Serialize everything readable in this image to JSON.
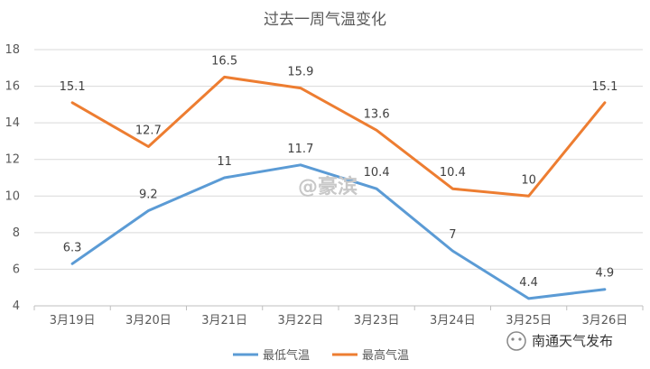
{
  "chart_data": {
    "type": "line",
    "title": "过去一周气温变化",
    "categories": [
      "3月19日",
      "3月20日",
      "3月21日",
      "3月22日",
      "3月23日",
      "3月24日",
      "3月25日",
      "3月26日"
    ],
    "series": [
      {
        "name": "最低气温",
        "color": "#5b9bd5",
        "values": [
          6.3,
          9.2,
          11,
          11.7,
          10.4,
          7,
          4.4,
          4.9
        ]
      },
      {
        "name": "最高气温",
        "color": "#ed7d31",
        "values": [
          15.1,
          12.7,
          16.5,
          15.9,
          13.6,
          10.4,
          10,
          15.1
        ]
      }
    ],
    "ylim": [
      4,
      18
    ],
    "yticks": [
      4,
      6,
      8,
      10,
      12,
      14,
      16,
      18
    ],
    "grid": true,
    "legend": "bottom"
  },
  "watermark": {
    "center_text": "@豪滨",
    "corner_text": "南通天气发布"
  }
}
